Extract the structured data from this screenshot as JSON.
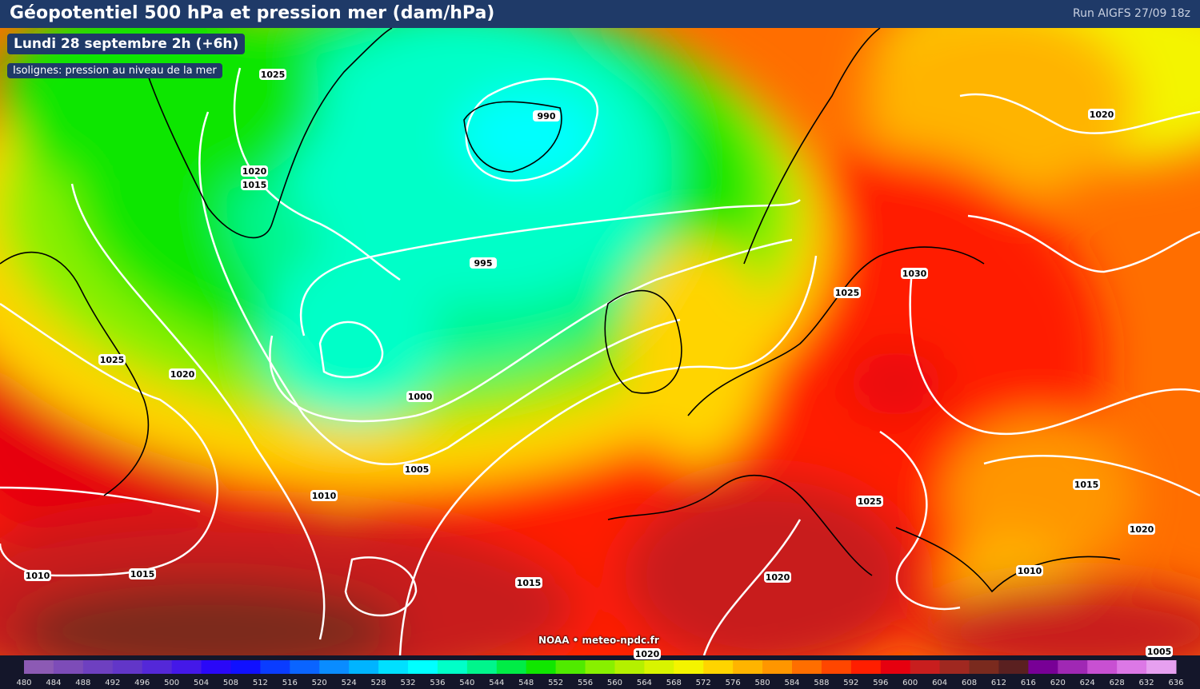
{
  "header": {
    "title": "Géopotentiel 500 hPa et pression mer (dam/hPa)",
    "run": "Run AIGFS 27/09 18z"
  },
  "date_label": "Lundi 28 septembre 2h (+6h)",
  "isolines_note": "Isolignes: pression au niveau de la mer",
  "credit": "NOAA • meteo-npdc.fr",
  "isobar_labels": [
    1025,
    990,
    1020,
    1015,
    995,
    1025,
    1020,
    1000,
    1005,
    1010,
    1010,
    1015,
    1015,
    1020,
    1025,
    1030,
    1020,
    1015,
    1025,
    1020,
    1010,
    1005,
    1020
  ],
  "colorbar": {
    "values": [
      480,
      484,
      488,
      492,
      496,
      500,
      504,
      508,
      512,
      516,
      520,
      524,
      528,
      532,
      536,
      540,
      544,
      548,
      552,
      556,
      560,
      564,
      568,
      572,
      576,
      580,
      584,
      588,
      592,
      596,
      600,
      604,
      608,
      612,
      616,
      620,
      624,
      628,
      632,
      636
    ],
    "colors": [
      "#8c5ab4",
      "#7d4cb8",
      "#6e40c0",
      "#6236c8",
      "#5428d8",
      "#4418e8",
      "#2a08f8",
      "#1010ff",
      "#0a3cff",
      "#0a64ff",
      "#0a8cff",
      "#00b4ff",
      "#00e0ff",
      "#00ffff",
      "#00ffc8",
      "#00f58c",
      "#00ec46",
      "#10e600",
      "#50ea00",
      "#88f000",
      "#b4f000",
      "#d8f400",
      "#f4f400",
      "#ffd400",
      "#ffb400",
      "#ff9600",
      "#ff6e00",
      "#ff4600",
      "#ff1e00",
      "#e6000f",
      "#c81e1e",
      "#a02820",
      "#7a2a1e",
      "#5a2020",
      "#780096",
      "#a028b4",
      "#c850d2",
      "#dc78e6",
      "#e6a0f0"
    ]
  }
}
